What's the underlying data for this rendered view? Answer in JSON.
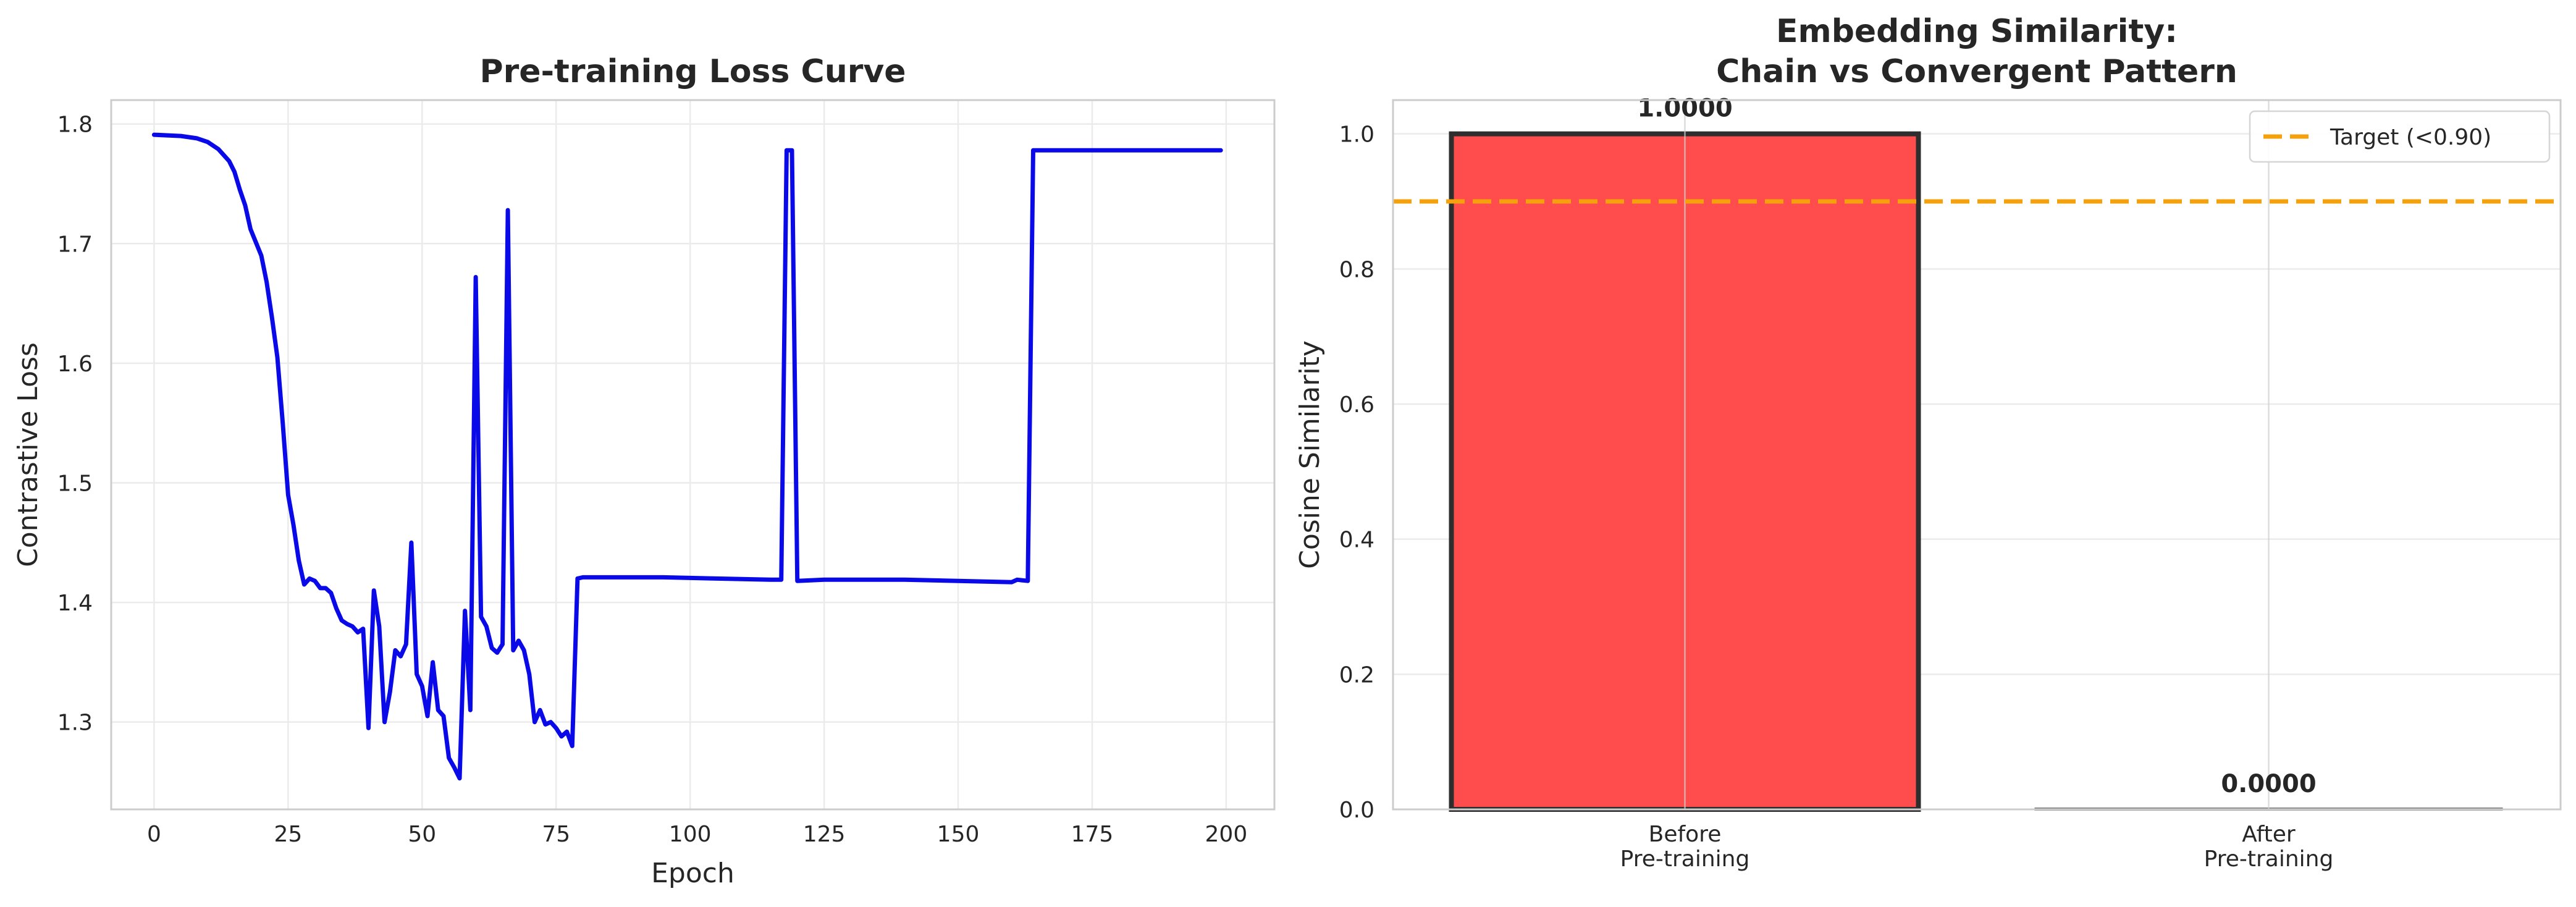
{
  "chart_data": [
    {
      "type": "line",
      "title": "Pre-training Loss Curve",
      "xlabel": "Epoch",
      "ylabel": "Contrastive Loss",
      "xlim": [
        -8,
        209
      ],
      "ylim": [
        1.227,
        1.82
      ],
      "xticks": [
        0,
        25,
        50,
        75,
        100,
        125,
        150,
        175,
        200
      ],
      "yticks": [
        1.3,
        1.4,
        1.5,
        1.6,
        1.7,
        1.8
      ],
      "grid": true,
      "legend": "none",
      "series": [
        {
          "color": "#0a0ae8",
          "points": [
            [
              0,
              1.791
            ],
            [
              5,
              1.79
            ],
            [
              8,
              1.788
            ],
            [
              10,
              1.785
            ],
            [
              12,
              1.779
            ],
            [
              14,
              1.769
            ],
            [
              15,
              1.76
            ],
            [
              16,
              1.745
            ],
            [
              17,
              1.732
            ],
            [
              18,
              1.712
            ],
            [
              20,
              1.69
            ],
            [
              21,
              1.668
            ],
            [
              22,
              1.638
            ],
            [
              23,
              1.605
            ],
            [
              24,
              1.55
            ],
            [
              25,
              1.49
            ],
            [
              26,
              1.465
            ],
            [
              27,
              1.435
            ],
            [
              28,
              1.415
            ],
            [
              29,
              1.42
            ],
            [
              30,
              1.418
            ],
            [
              31,
              1.412
            ],
            [
              32,
              1.412
            ],
            [
              33,
              1.408
            ],
            [
              34,
              1.395
            ],
            [
              35,
              1.385
            ],
            [
              36,
              1.382
            ],
            [
              37,
              1.38
            ],
            [
              38,
              1.375
            ],
            [
              39,
              1.378
            ],
            [
              40,
              1.295
            ],
            [
              41,
              1.41
            ],
            [
              42,
              1.38
            ],
            [
              43,
              1.3
            ],
            [
              44,
              1.325
            ],
            [
              45,
              1.36
            ],
            [
              46,
              1.355
            ],
            [
              47,
              1.365
            ],
            [
              48,
              1.45
            ],
            [
              49,
              1.34
            ],
            [
              50,
              1.33
            ],
            [
              51,
              1.305
            ],
            [
              52,
              1.35
            ],
            [
              53,
              1.31
            ],
            [
              54,
              1.305
            ],
            [
              55,
              1.27
            ],
            [
              56,
              1.262
            ],
            [
              57,
              1.253
            ],
            [
              58,
              1.393
            ],
            [
              59,
              1.31
            ],
            [
              60,
              1.672
            ],
            [
              61,
              1.388
            ],
            [
              62,
              1.38
            ],
            [
              63,
              1.362
            ],
            [
              64,
              1.358
            ],
            [
              65,
              1.365
            ],
            [
              66,
              1.728
            ],
            [
              67,
              1.36
            ],
            [
              68,
              1.368
            ],
            [
              69,
              1.36
            ],
            [
              70,
              1.34
            ],
            [
              71,
              1.3
            ],
            [
              72,
              1.31
            ],
            [
              73,
              1.298
            ],
            [
              74,
              1.3
            ],
            [
              75,
              1.295
            ],
            [
              76,
              1.288
            ],
            [
              77,
              1.292
            ],
            [
              78,
              1.28
            ],
            [
              79,
              1.42
            ],
            [
              80,
              1.421
            ],
            [
              95,
              1.421
            ],
            [
              105,
              1.42
            ],
            [
              115,
              1.419
            ],
            [
              117,
              1.419
            ],
            [
              118,
              1.778
            ],
            [
              119,
              1.778
            ],
            [
              120,
              1.418
            ],
            [
              125,
              1.419
            ],
            [
              140,
              1.419
            ],
            [
              160,
              1.417
            ],
            [
              161,
              1.419
            ],
            [
              163,
              1.418
            ],
            [
              164,
              1.778
            ],
            [
              199,
              1.778
            ]
          ]
        }
      ]
    },
    {
      "type": "bar",
      "title": [
        "Embedding Similarity:",
        "Chain vs Convergent Pattern"
      ],
      "xlabel": "",
      "ylabel": "Cosine Similarity",
      "ylim": [
        0,
        1.05
      ],
      "yticks": [
        0.0,
        0.2,
        0.4,
        0.6,
        0.8,
        1.0
      ],
      "grid": true,
      "legend": "top-right",
      "categories": [
        [
          "Before",
          "Pre-training"
        ],
        [
          "After",
          "Pre-training"
        ]
      ],
      "values": [
        1.0,
        0.0
      ],
      "value_labels": [
        "1.0000",
        "0.0000"
      ],
      "bar_colors": [
        "#ff4d4d",
        "#a0a0a0"
      ],
      "reference_line": {
        "y": 0.9,
        "label": "Target (<0.90)",
        "color": "#f5a10b",
        "style": "dashed"
      }
    }
  ]
}
